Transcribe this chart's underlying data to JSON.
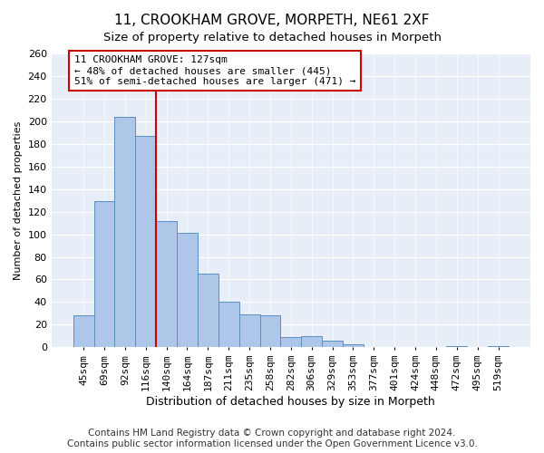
{
  "title": "11, CROOKHAM GROVE, MORPETH, NE61 2XF",
  "subtitle": "Size of property relative to detached houses in Morpeth",
  "xlabel": "Distribution of detached houses by size in Morpeth",
  "ylabel": "Number of detached properties",
  "categories": [
    "45sqm",
    "69sqm",
    "92sqm",
    "116sqm",
    "140sqm",
    "164sqm",
    "187sqm",
    "211sqm",
    "235sqm",
    "258sqm",
    "282sqm",
    "306sqm",
    "329sqm",
    "353sqm",
    "377sqm",
    "401sqm",
    "424sqm",
    "448sqm",
    "472sqm",
    "495sqm",
    "519sqm"
  ],
  "values": [
    28,
    129,
    204,
    187,
    112,
    101,
    65,
    40,
    29,
    28,
    9,
    10,
    6,
    3,
    0,
    0,
    0,
    0,
    1,
    0,
    1
  ],
  "bar_color": "#aec6e8",
  "bar_edge_color": "#5a8fc0",
  "vline_color": "#cc0000",
  "vline_x": 3.5,
  "property_label": "11 CROOKHAM GROVE: 127sqm",
  "annotation_line1": "← 48% of detached houses are smaller (445)",
  "annotation_line2": "51% of semi-detached houses are larger (471) →",
  "annotation_box_color": "#ffffff",
  "annotation_box_edge_color": "#cc0000",
  "ylim": [
    0,
    260
  ],
  "yticks": [
    0,
    20,
    40,
    60,
    80,
    100,
    120,
    140,
    160,
    180,
    200,
    220,
    240,
    260
  ],
  "footer_line1": "Contains HM Land Registry data © Crown copyright and database right 2024.",
  "footer_line2": "Contains public sector information licensed under the Open Government Licence v3.0.",
  "bg_color": "#e8eef8",
  "title_fontsize": 11,
  "xlabel_fontsize": 9,
  "ylabel_fontsize": 8,
  "tick_fontsize": 8,
  "footer_fontsize": 7.5
}
